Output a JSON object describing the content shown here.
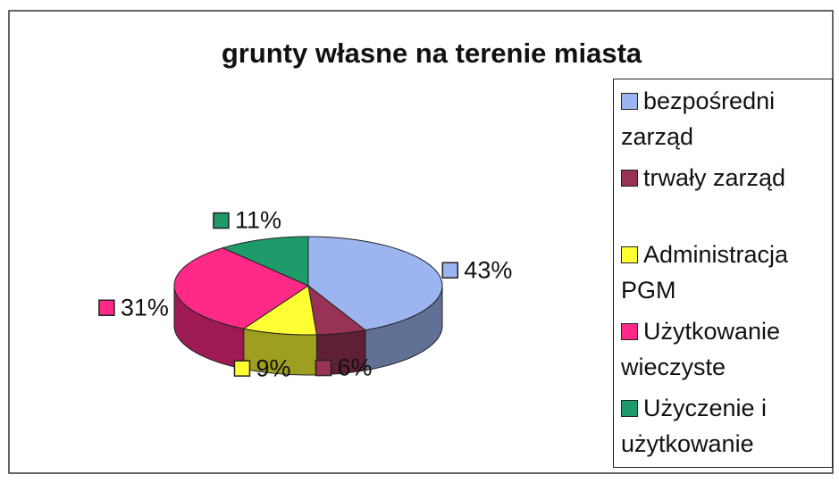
{
  "chart_data": {
    "type": "pie3d",
    "title": "grunty własne na terenie miasta",
    "categories": [
      "bezpośredni zarząd",
      "trwały zarząd",
      "Administracja PGM",
      "Użytkowanie wieczyste",
      "Użyczenie i użytkowanie"
    ],
    "values": [
      43,
      6,
      9,
      31,
      11
    ],
    "value_labels": [
      "43%",
      "6%",
      "9%",
      "31%",
      "11%"
    ],
    "colors": [
      "#9cb4f0",
      "#993355",
      "#ffff33",
      "#ff2a88",
      "#1f9a6a"
    ],
    "legend": "right"
  }
}
